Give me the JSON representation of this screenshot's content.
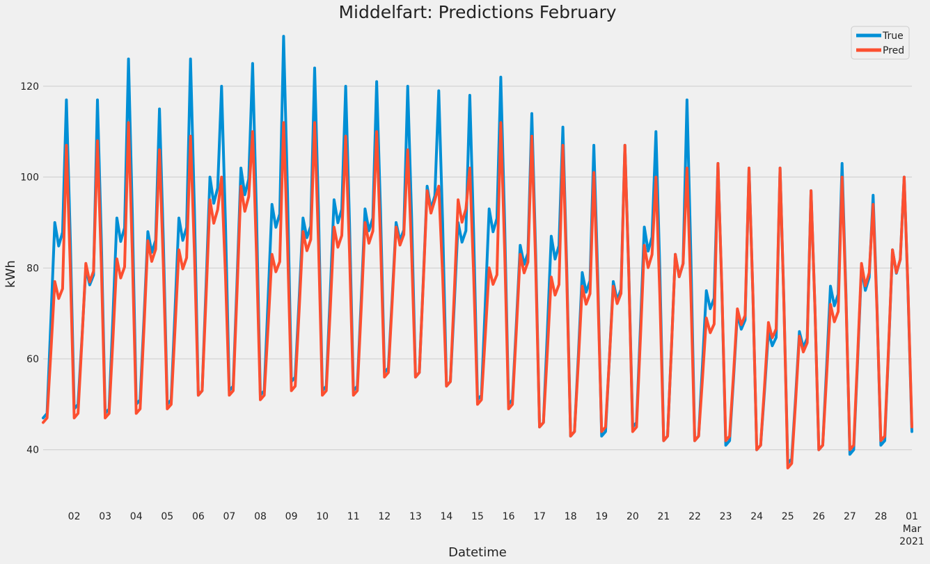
{
  "chart_data": {
    "type": "line",
    "title": "Middelfart: Predictions February",
    "xlabel": "Datetime",
    "ylabel": "kWh",
    "x_start": "2021-02-01 00:00",
    "x_end": "2021-03-01 00:00",
    "ylim": [
      32,
      133
    ],
    "yticks": [
      40,
      60,
      80,
      100,
      120
    ],
    "xticks": [
      {
        "date": "2021-02-02",
        "label": "02"
      },
      {
        "date": "2021-02-03",
        "label": "03"
      },
      {
        "date": "2021-02-04",
        "label": "04"
      },
      {
        "date": "2021-02-05",
        "label": "05"
      },
      {
        "date": "2021-02-06",
        "label": "06"
      },
      {
        "date": "2021-02-07",
        "label": "07"
      },
      {
        "date": "2021-02-08",
        "label": "08"
      },
      {
        "date": "2021-02-09",
        "label": "09"
      },
      {
        "date": "2021-02-10",
        "label": "10"
      },
      {
        "date": "2021-02-11",
        "label": "11"
      },
      {
        "date": "2021-02-12",
        "label": "12"
      },
      {
        "date": "2021-02-13",
        "label": "13"
      },
      {
        "date": "2021-02-14",
        "label": "14"
      },
      {
        "date": "2021-02-15",
        "label": "15"
      },
      {
        "date": "2021-02-16",
        "label": "16"
      },
      {
        "date": "2021-02-17",
        "label": "17"
      },
      {
        "date": "2021-02-18",
        "label": "18"
      },
      {
        "date": "2021-02-19",
        "label": "19"
      },
      {
        "date": "2021-02-20",
        "label": "20"
      },
      {
        "date": "2021-02-21",
        "label": "21"
      },
      {
        "date": "2021-02-22",
        "label": "22"
      },
      {
        "date": "2021-02-23",
        "label": "23"
      },
      {
        "date": "2021-02-24",
        "label": "24"
      },
      {
        "date": "2021-02-25",
        "label": "25"
      },
      {
        "date": "2021-02-26",
        "label": "26"
      },
      {
        "date": "2021-02-27",
        "label": "27"
      },
      {
        "date": "2021-02-28",
        "label": "28"
      },
      {
        "date": "2021-03-01",
        "label": "01",
        "label2": "Mar",
        "label3": "2021"
      }
    ],
    "grid": "y",
    "legend_position": "top-right",
    "series": [
      {
        "name": "True",
        "color": "#008fd5",
        "daily": [
          {
            "date": "2021-02-01",
            "min": 47,
            "mid": 90,
            "peak": 117
          },
          {
            "date": "2021-02-02",
            "min": 49,
            "mid": 80,
            "peak": 117
          },
          {
            "date": "2021-02-03",
            "min": 48,
            "mid": 91,
            "peak": 126
          },
          {
            "date": "2021-02-04",
            "min": 50,
            "mid": 88,
            "peak": 115
          },
          {
            "date": "2021-02-05",
            "min": 50,
            "mid": 91,
            "peak": 126
          },
          {
            "date": "2021-02-06",
            "min": 52,
            "mid": 100,
            "peak": 120
          },
          {
            "date": "2021-02-07",
            "min": 53,
            "mid": 102,
            "peak": 125
          },
          {
            "date": "2021-02-08",
            "min": 52,
            "mid": 94,
            "peak": 131
          },
          {
            "date": "2021-02-09",
            "min": 55,
            "mid": 91,
            "peak": 124
          },
          {
            "date": "2021-02-10",
            "min": 53,
            "mid": 95,
            "peak": 120
          },
          {
            "date": "2021-02-11",
            "min": 53,
            "mid": 93,
            "peak": 121
          },
          {
            "date": "2021-02-12",
            "min": 57,
            "mid": 90,
            "peak": 120
          },
          {
            "date": "2021-02-13",
            "min": 56,
            "mid": 98,
            "peak": 119
          },
          {
            "date": "2021-02-14",
            "min": 54,
            "mid": 90,
            "peak": 118
          },
          {
            "date": "2021-02-15",
            "min": 51,
            "mid": 93,
            "peak": 122
          },
          {
            "date": "2021-02-16",
            "min": 50,
            "mid": 85,
            "peak": 114
          },
          {
            "date": "2021-02-17",
            "min": 45,
            "mid": 87,
            "peak": 111
          },
          {
            "date": "2021-02-18",
            "min": 43,
            "mid": 79,
            "peak": 107
          },
          {
            "date": "2021-02-19",
            "min": 43,
            "mid": 77,
            "peak": 107
          },
          {
            "date": "2021-02-20",
            "min": 45,
            "mid": 89,
            "peak": 110
          },
          {
            "date": "2021-02-21",
            "min": 42,
            "mid": 83,
            "peak": 117
          },
          {
            "date": "2021-02-22",
            "min": 42,
            "mid": 75,
            "peak": 103
          },
          {
            "date": "2021-02-23",
            "min": 41,
            "mid": 70,
            "peak": 102
          },
          {
            "date": "2021-02-24",
            "min": 40,
            "mid": 66,
            "peak": 102
          },
          {
            "date": "2021-02-25",
            "min": 37,
            "mid": 66,
            "peak": 97
          },
          {
            "date": "2021-02-26",
            "min": 40,
            "mid": 76,
            "peak": 103
          },
          {
            "date": "2021-02-27",
            "min": 39,
            "mid": 80,
            "peak": 96
          },
          {
            "date": "2021-02-28",
            "min": 41,
            "mid": 84,
            "peak": 100
          }
        ],
        "end_value": 44
      },
      {
        "name": "Pred",
        "color": "#fc4f30",
        "daily": [
          {
            "date": "2021-02-01",
            "min": 46,
            "mid": 77,
            "peak": 107
          },
          {
            "date": "2021-02-02",
            "min": 47,
            "mid": 81,
            "peak": 108
          },
          {
            "date": "2021-02-03",
            "min": 47,
            "mid": 82,
            "peak": 112
          },
          {
            "date": "2021-02-04",
            "min": 48,
            "mid": 86,
            "peak": 106
          },
          {
            "date": "2021-02-05",
            "min": 49,
            "mid": 84,
            "peak": 109
          },
          {
            "date": "2021-02-06",
            "min": 52,
            "mid": 95,
            "peak": 100
          },
          {
            "date": "2021-02-07",
            "min": 52,
            "mid": 98,
            "peak": 110
          },
          {
            "date": "2021-02-08",
            "min": 51,
            "mid": 83,
            "peak": 112
          },
          {
            "date": "2021-02-09",
            "min": 53,
            "mid": 88,
            "peak": 112
          },
          {
            "date": "2021-02-10",
            "min": 52,
            "mid": 89,
            "peak": 109
          },
          {
            "date": "2021-02-11",
            "min": 52,
            "mid": 90,
            "peak": 110
          },
          {
            "date": "2021-02-12",
            "min": 56,
            "mid": 89,
            "peak": 106
          },
          {
            "date": "2021-02-13",
            "min": 56,
            "mid": 97,
            "peak": 98
          },
          {
            "date": "2021-02-14",
            "min": 54,
            "mid": 95,
            "peak": 102
          },
          {
            "date": "2021-02-15",
            "min": 50,
            "mid": 80,
            "peak": 112
          },
          {
            "date": "2021-02-16",
            "min": 49,
            "mid": 83,
            "peak": 109
          },
          {
            "date": "2021-02-17",
            "min": 45,
            "mid": 78,
            "peak": 107
          },
          {
            "date": "2021-02-18",
            "min": 43,
            "mid": 76,
            "peak": 101
          },
          {
            "date": "2021-02-19",
            "min": 44,
            "mid": 76,
            "peak": 107
          },
          {
            "date": "2021-02-20",
            "min": 44,
            "mid": 85,
            "peak": 100
          },
          {
            "date": "2021-02-21",
            "min": 42,
            "mid": 83,
            "peak": 102
          },
          {
            "date": "2021-02-22",
            "min": 42,
            "mid": 69,
            "peak": 103
          },
          {
            "date": "2021-02-23",
            "min": 42,
            "mid": 71,
            "peak": 102
          },
          {
            "date": "2021-02-24",
            "min": 40,
            "mid": 68,
            "peak": 102
          },
          {
            "date": "2021-02-25",
            "min": 36,
            "mid": 65,
            "peak": 97
          },
          {
            "date": "2021-02-26",
            "min": 40,
            "mid": 72,
            "peak": 100
          },
          {
            "date": "2021-02-27",
            "min": 40,
            "mid": 81,
            "peak": 94
          },
          {
            "date": "2021-02-28",
            "min": 42,
            "mid": 84,
            "peak": 100
          }
        ],
        "end_value": 45
      }
    ]
  }
}
